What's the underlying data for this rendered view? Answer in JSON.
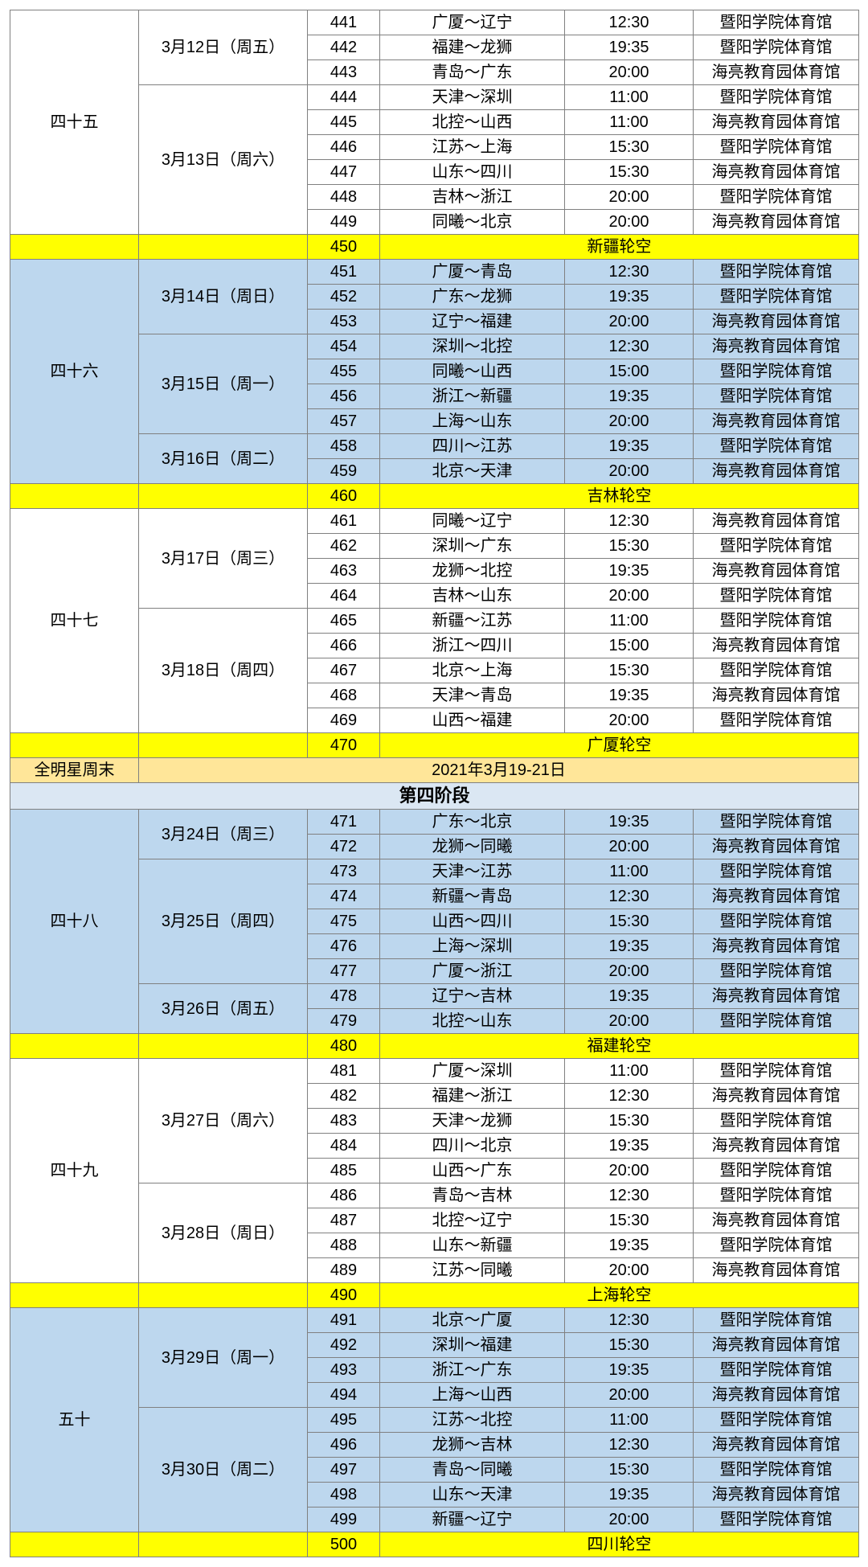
{
  "colors": {
    "white": "#ffffff",
    "blue": "#bdd7ee",
    "yellow": "#ffff00",
    "orange": "#ffe699",
    "lightblue": "#dbe7f3",
    "border": "#808080"
  },
  "rounds": [
    {
      "label": "四十五",
      "bg": "white",
      "dates": [
        {
          "label": "3月12日（周五）",
          "games": [
            {
              "num": "441",
              "match": "广厦～辽宁",
              "time": "12:30",
              "venue": "暨阳学院体育馆"
            },
            {
              "num": "442",
              "match": "福建～龙狮",
              "time": "19:35",
              "venue": "暨阳学院体育馆"
            },
            {
              "num": "443",
              "match": "青岛～广东",
              "time": "20:00",
              "venue": "海亮教育园体育馆"
            }
          ]
        },
        {
          "label": "3月13日（周六）",
          "games": [
            {
              "num": "444",
              "match": "天津～深圳",
              "time": "11:00",
              "venue": "暨阳学院体育馆"
            },
            {
              "num": "445",
              "match": "北控～山西",
              "time": "11:00",
              "venue": "海亮教育园体育馆"
            },
            {
              "num": "446",
              "match": "江苏～上海",
              "time": "15:30",
              "venue": "暨阳学院体育馆"
            },
            {
              "num": "447",
              "match": "山东～四川",
              "time": "15:30",
              "venue": "海亮教育园体育馆"
            },
            {
              "num": "448",
              "match": "吉林～浙江",
              "time": "20:00",
              "venue": "暨阳学院体育馆"
            },
            {
              "num": "449",
              "match": "同曦～北京",
              "time": "20:00",
              "venue": "海亮教育园体育馆"
            }
          ]
        }
      ],
      "bye": {
        "num": "450",
        "text": "新疆轮空"
      }
    },
    {
      "label": "四十六",
      "bg": "blue",
      "dates": [
        {
          "label": "3月14日（周日）",
          "games": [
            {
              "num": "451",
              "match": "广厦～青岛",
              "time": "12:30",
              "venue": "暨阳学院体育馆"
            },
            {
              "num": "452",
              "match": "广东～龙狮",
              "time": "19:35",
              "venue": "暨阳学院体育馆"
            },
            {
              "num": "453",
              "match": "辽宁～福建",
              "time": "20:00",
              "venue": "海亮教育园体育馆"
            }
          ]
        },
        {
          "label": "3月15日（周一）",
          "games": [
            {
              "num": "454",
              "match": "深圳～北控",
              "time": "12:30",
              "venue": "海亮教育园体育馆"
            },
            {
              "num": "455",
              "match": "同曦～山西",
              "time": "15:00",
              "venue": "暨阳学院体育馆"
            },
            {
              "num": "456",
              "match": "浙江～新疆",
              "time": "19:35",
              "venue": "暨阳学院体育馆"
            },
            {
              "num": "457",
              "match": "上海～山东",
              "time": "20:00",
              "venue": "海亮教育园体育馆"
            }
          ]
        },
        {
          "label": "3月16日（周二）",
          "games": [
            {
              "num": "458",
              "match": "四川～江苏",
              "time": "19:35",
              "venue": "暨阳学院体育馆"
            },
            {
              "num": "459",
              "match": "北京～天津",
              "time": "20:00",
              "venue": "海亮教育园体育馆"
            }
          ]
        }
      ],
      "bye": {
        "num": "460",
        "text": "吉林轮空"
      }
    },
    {
      "label": "四十七",
      "bg": "white",
      "dates": [
        {
          "label": "3月17日（周三）",
          "games": [
            {
              "num": "461",
              "match": "同曦～辽宁",
              "time": "12:30",
              "venue": "海亮教育园体育馆"
            },
            {
              "num": "462",
              "match": "深圳～广东",
              "time": "15:30",
              "venue": "暨阳学院体育馆"
            },
            {
              "num": "463",
              "match": "龙狮～北控",
              "time": "19:35",
              "venue": "海亮教育园体育馆"
            },
            {
              "num": "464",
              "match": "吉林～山东",
              "time": "20:00",
              "venue": "暨阳学院体育馆"
            }
          ]
        },
        {
          "label": "3月18日（周四）",
          "games": [
            {
              "num": "465",
              "match": "新疆～江苏",
              "time": "11:00",
              "venue": "暨阳学院体育馆"
            },
            {
              "num": "466",
              "match": "浙江～四川",
              "time": "15:00",
              "venue": "海亮教育园体育馆"
            },
            {
              "num": "467",
              "match": "北京～上海",
              "time": "15:30",
              "venue": "暨阳学院体育馆"
            },
            {
              "num": "468",
              "match": "天津～青岛",
              "time": "19:35",
              "venue": "海亮教育园体育馆"
            },
            {
              "num": "469",
              "match": "山西～福建",
              "time": "20:00",
              "venue": "暨阳学院体育馆"
            }
          ]
        }
      ],
      "bye": {
        "num": "470",
        "text": "广厦轮空"
      }
    }
  ],
  "allstar": {
    "label": "全明星周末",
    "text": "2021年3月19-21日"
  },
  "stage4_title": "第四阶段",
  "stage4_rounds": [
    {
      "label": "四十八",
      "bg": "blue",
      "dates": [
        {
          "label": "3月24日（周三）",
          "games": [
            {
              "num": "471",
              "match": "广东～北京",
              "time": "19:35",
              "venue": "暨阳学院体育馆"
            },
            {
              "num": "472",
              "match": "龙狮～同曦",
              "time": "20:00",
              "venue": "海亮教育园体育馆"
            }
          ]
        },
        {
          "label": "3月25日（周四）",
          "games": [
            {
              "num": "473",
              "match": "天津～江苏",
              "time": "11:00",
              "venue": "暨阳学院体育馆"
            },
            {
              "num": "474",
              "match": "新疆～青岛",
              "time": "12:30",
              "venue": "海亮教育园体育馆"
            },
            {
              "num": "475",
              "match": "山西～四川",
              "time": "15:30",
              "venue": "暨阳学院体育馆"
            },
            {
              "num": "476",
              "match": "上海～深圳",
              "time": "19:35",
              "venue": "海亮教育园体育馆"
            },
            {
              "num": "477",
              "match": "广厦～浙江",
              "time": "20:00",
              "venue": "暨阳学院体育馆"
            }
          ]
        },
        {
          "label": "3月26日（周五）",
          "games": [
            {
              "num": "478",
              "match": "辽宁～吉林",
              "time": "19:35",
              "venue": "海亮教育园体育馆"
            },
            {
              "num": "479",
              "match": "北控～山东",
              "time": "20:00",
              "venue": "暨阳学院体育馆"
            }
          ]
        }
      ],
      "bye": {
        "num": "480",
        "text": "福建轮空"
      }
    },
    {
      "label": "四十九",
      "bg": "white",
      "dates": [
        {
          "label": "3月27日（周六）",
          "games": [
            {
              "num": "481",
              "match": "广厦～深圳",
              "time": "11:00",
              "venue": "暨阳学院体育馆"
            },
            {
              "num": "482",
              "match": "福建～浙江",
              "time": "12:30",
              "venue": "海亮教育园体育馆"
            },
            {
              "num": "483",
              "match": "天津～龙狮",
              "time": "15:30",
              "venue": "暨阳学院体育馆"
            },
            {
              "num": "484",
              "match": "四川～北京",
              "time": "19:35",
              "venue": "海亮教育园体育馆"
            },
            {
              "num": "485",
              "match": "山西～广东",
              "time": "20:00",
              "venue": "暨阳学院体育馆"
            }
          ]
        },
        {
          "label": "3月28日（周日）",
          "games": [
            {
              "num": "486",
              "match": "青岛～吉林",
              "time": "12:30",
              "venue": "暨阳学院体育馆"
            },
            {
              "num": "487",
              "match": "北控～辽宁",
              "time": "15:30",
              "venue": "海亮教育园体育馆"
            },
            {
              "num": "488",
              "match": "山东～新疆",
              "time": "19:35",
              "venue": "暨阳学院体育馆"
            },
            {
              "num": "489",
              "match": "江苏～同曦",
              "time": "20:00",
              "venue": "海亮教育园体育馆"
            }
          ]
        }
      ],
      "bye": {
        "num": "490",
        "text": "上海轮空"
      }
    },
    {
      "label": "五十",
      "bg": "blue",
      "dates": [
        {
          "label": "3月29日（周一）",
          "games": [
            {
              "num": "491",
              "match": "北京～广厦",
              "time": "12:30",
              "venue": "暨阳学院体育馆"
            },
            {
              "num": "492",
              "match": "深圳～福建",
              "time": "15:30",
              "venue": "海亮教育园体育馆"
            },
            {
              "num": "493",
              "match": "浙江～广东",
              "time": "19:35",
              "venue": "暨阳学院体育馆"
            },
            {
              "num": "494",
              "match": "上海～山西",
              "time": "20:00",
              "venue": "海亮教育园体育馆"
            }
          ]
        },
        {
          "label": "3月30日（周二）",
          "games": [
            {
              "num": "495",
              "match": "江苏～北控",
              "time": "11:00",
              "venue": "暨阳学院体育馆"
            },
            {
              "num": "496",
              "match": "龙狮～吉林",
              "time": "12:30",
              "venue": "海亮教育园体育馆"
            },
            {
              "num": "497",
              "match": "青岛～同曦",
              "time": "15:30",
              "venue": "暨阳学院体育馆"
            },
            {
              "num": "498",
              "match": "山东～天津",
              "time": "19:35",
              "venue": "海亮教育园体育馆"
            },
            {
              "num": "499",
              "match": "新疆～辽宁",
              "time": "20:00",
              "venue": "暨阳学院体育馆"
            }
          ]
        }
      ],
      "bye": {
        "num": "500",
        "text": "四川轮空"
      }
    }
  ]
}
